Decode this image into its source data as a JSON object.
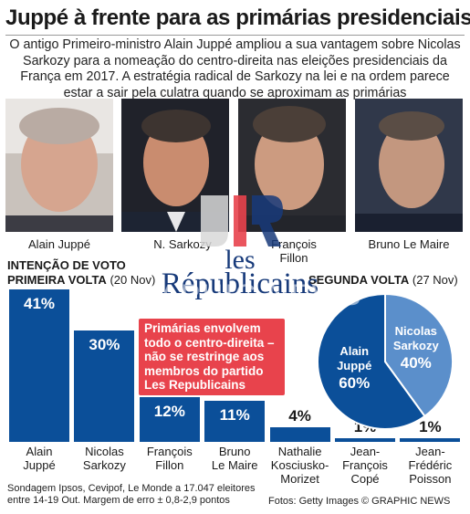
{
  "header": {
    "title": "Juppé à frente para as primárias presidenciais",
    "intro": "O antigo Primeiro-ministro Alain Juppé ampliou a sua vantagem sobre Nicolas Sarkozy para a nomeação do centro-direita nas eleições presidenciais da França em 2017. A estratégia radical de Sarkozy na lei e na ordem parece estar a sair pela culatra quando se aproximam as primárias"
  },
  "portraits": [
    {
      "name": "Alain Juppé"
    },
    {
      "name": "N. Sarkozy"
    },
    {
      "name": "François Fillon"
    },
    {
      "name": "Bruno Le Maire"
    }
  ],
  "section_first": {
    "heading": "INTENÇÃO DE VOTO",
    "round": "PRIMEIRA VOLTA",
    "date": "(20 Nov)"
  },
  "section_second": {
    "round": "SEGUNDA VOLTA",
    "date": "(27 Nov)"
  },
  "note": "Primárias envolvem todo o centro-direita – não se restringe aos membros do partido Les Republicains",
  "logo": {
    "line1": "les",
    "line2": "Républicains"
  },
  "watermark": "GRAPHIC NEWS",
  "colors": {
    "bar": "#0b4f99",
    "pie_light": "#5b8fcb",
    "note": "#e8434c"
  },
  "chart_data": [
    {
      "type": "bar",
      "title": "PRIMEIRA VOLTA (20 Nov)",
      "categories": [
        "Alain Juppé",
        "Nicolas Sarkozy",
        "François Fillon",
        "Bruno Le Maire",
        "Nathalie Kosciusko-Morizet",
        "Jean-François Copé",
        "Jean-Frédéric Poisson"
      ],
      "category_lines": [
        [
          "Alain",
          "Juppé"
        ],
        [
          "Nicolas",
          "Sarkozy"
        ],
        [
          "François",
          "Fillon"
        ],
        [
          "Bruno",
          "Le Maire"
        ],
        [
          "Nathalie",
          "Kosciusko-",
          "Morizet"
        ],
        [
          "Jean-",
          "François",
          "Copé"
        ],
        [
          "Jean-",
          "Frédéric",
          "Poisson"
        ]
      ],
      "values": [
        41,
        30,
        12,
        11,
        4,
        1,
        1
      ],
      "labels": [
        "41%",
        "30%",
        "12%",
        "11%",
        "4%",
        "1%",
        "1%"
      ],
      "ylim": [
        0,
        41
      ]
    },
    {
      "type": "pie",
      "title": "SEGUNDA VOLTA (27 Nov)",
      "slices": [
        {
          "name": "Alain Juppé",
          "lines": [
            "Alain",
            "Juppé"
          ],
          "value": 60,
          "label": "60%",
          "color": "#0b4f99"
        },
        {
          "name": "Nicolas Sarkozy",
          "lines": [
            "Nicolas",
            "Sarkozy"
          ],
          "value": 40,
          "label": "40%",
          "color": "#5b8fcb"
        }
      ]
    }
  ],
  "footer": {
    "source": "Sondagem Ipsos, Cevipof, Le Monde a 17.047 eleitores",
    "source2": "entre 14-19 Out. Margem de erro ± 0,8-2,9 pontos",
    "photos": "Fotos: Getty Images",
    "credit": "© GRAPHIC NEWS"
  }
}
